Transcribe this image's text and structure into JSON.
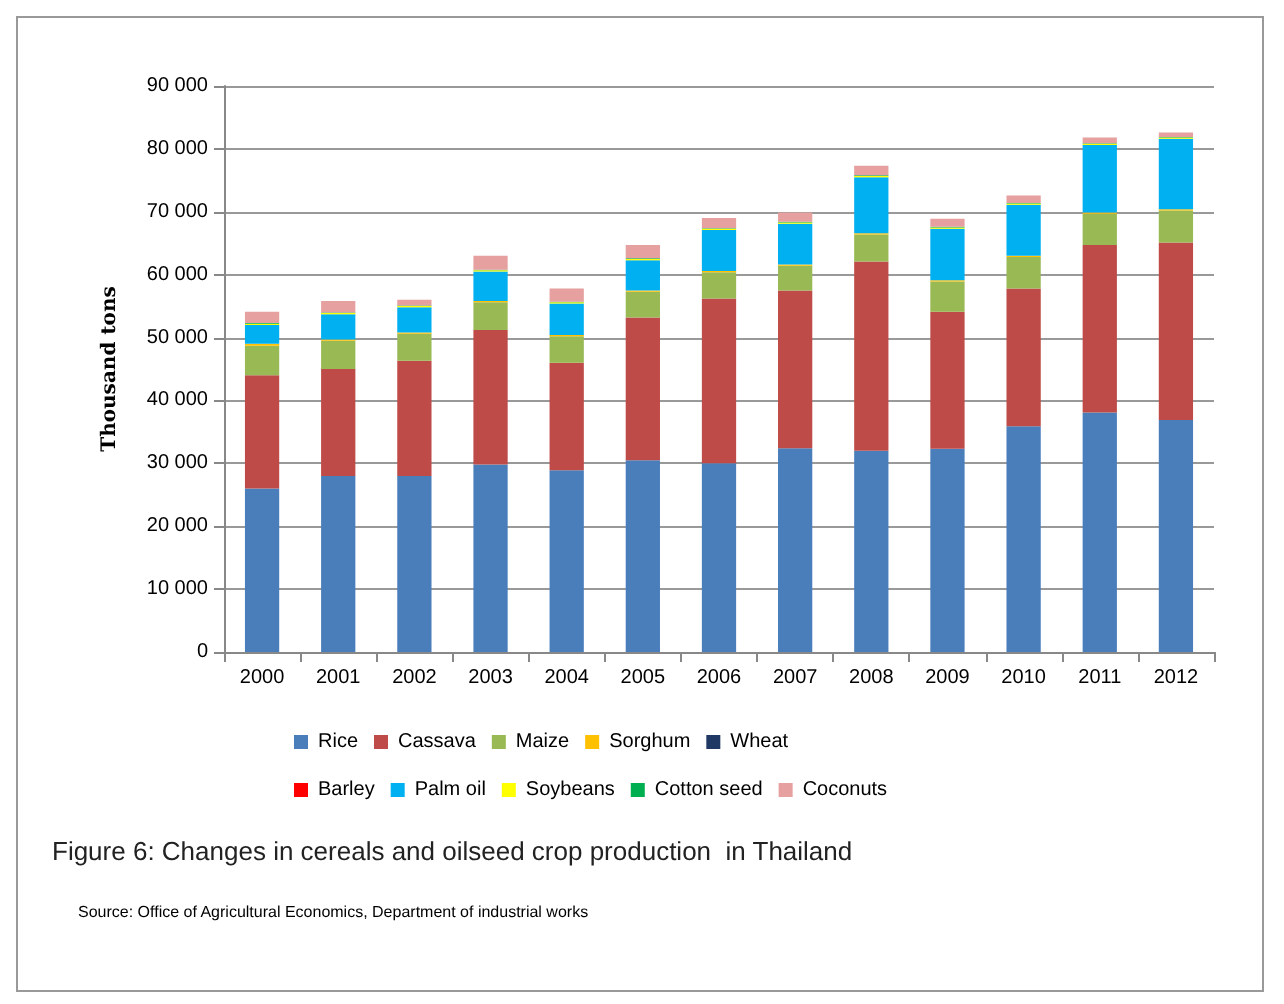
{
  "chart_data": {
    "type": "bar",
    "title": "Figure 6: Changes in cereals and oilseed crop production  in Thailand",
    "ylabel": "Thousand tons",
    "annotations": [
      "Source: Office of Agricultural Economics, Department of industrial works"
    ],
    "categories": [
      "2000",
      "2001",
      "2002",
      "2003",
      "2004",
      "2005",
      "2006",
      "2007",
      "2008",
      "2009",
      "2010",
      "2011",
      "2012"
    ],
    "stacked": true,
    "grid": "y",
    "legend": "bottom",
    "ylim": [
      0,
      90000
    ],
    "yticks": [
      {
        "value": 0,
        "label": "0"
      },
      {
        "value": 10000,
        "label": "10 000"
      },
      {
        "value": 20000,
        "label": "20 000"
      },
      {
        "value": 30000,
        "label": "30 000"
      },
      {
        "value": 40000,
        "label": "40 000"
      },
      {
        "value": 50000,
        "label": "50 000"
      },
      {
        "value": 60000,
        "label": "60 000"
      },
      {
        "value": 70000,
        "label": "70 000"
      },
      {
        "value": 80000,
        "label": "80 000"
      },
      {
        "value": 90000,
        "label": "90 000"
      }
    ],
    "series": [
      {
        "name": "Rice",
        "color": "#4a7ebb",
        "values": [
          26000,
          28000,
          28000,
          29800,
          28900,
          30500,
          30000,
          32400,
          32000,
          32300,
          35900,
          38100,
          36900
        ]
      },
      {
        "name": "Cassava",
        "color": "#be4b48",
        "values": [
          18000,
          17000,
          18300,
          21400,
          17100,
          22700,
          26200,
          25100,
          30100,
          21800,
          21900,
          26600,
          28200
        ]
      },
      {
        "name": "Maize",
        "color": "#98b954",
        "values": [
          4700,
          4500,
          4300,
          4400,
          4200,
          4100,
          4200,
          3900,
          4300,
          4800,
          5000,
          5000,
          5100
        ]
      },
      {
        "name": "Sorghum",
        "color": "#ffc000",
        "values": [
          300,
          200,
          200,
          200,
          200,
          200,
          200,
          200,
          200,
          200,
          200,
          200,
          200
        ]
      },
      {
        "name": "Wheat",
        "color": "#1f3864",
        "values": [
          0,
          0,
          0,
          0,
          0,
          0,
          0,
          0,
          0,
          0,
          0,
          0,
          0
        ]
      },
      {
        "name": "Barley",
        "color": "#ff0000",
        "values": [
          0,
          0,
          0,
          0,
          0,
          0,
          0,
          0,
          0,
          0,
          0,
          0,
          0
        ]
      },
      {
        "name": "Palm oil",
        "color": "#00b0f0",
        "values": [
          3000,
          4000,
          4000,
          4700,
          5000,
          4800,
          6500,
          6500,
          8900,
          8200,
          8100,
          10700,
          11200
        ]
      },
      {
        "name": "Soybeans",
        "color": "#ffff00",
        "values": [
          200,
          200,
          200,
          200,
          200,
          200,
          200,
          200,
          200,
          200,
          200,
          200,
          200
        ]
      },
      {
        "name": "Cotton seed",
        "color": "#00b050",
        "values": [
          100,
          100,
          100,
          100,
          100,
          100,
          100,
          100,
          100,
          100,
          100,
          100,
          100
        ]
      },
      {
        "name": "Coconuts",
        "color": "#e6a0a0",
        "values": [
          1800,
          1800,
          900,
          2200,
          2100,
          2100,
          1600,
          1500,
          1500,
          1300,
          1200,
          900,
          700
        ]
      }
    ]
  }
}
